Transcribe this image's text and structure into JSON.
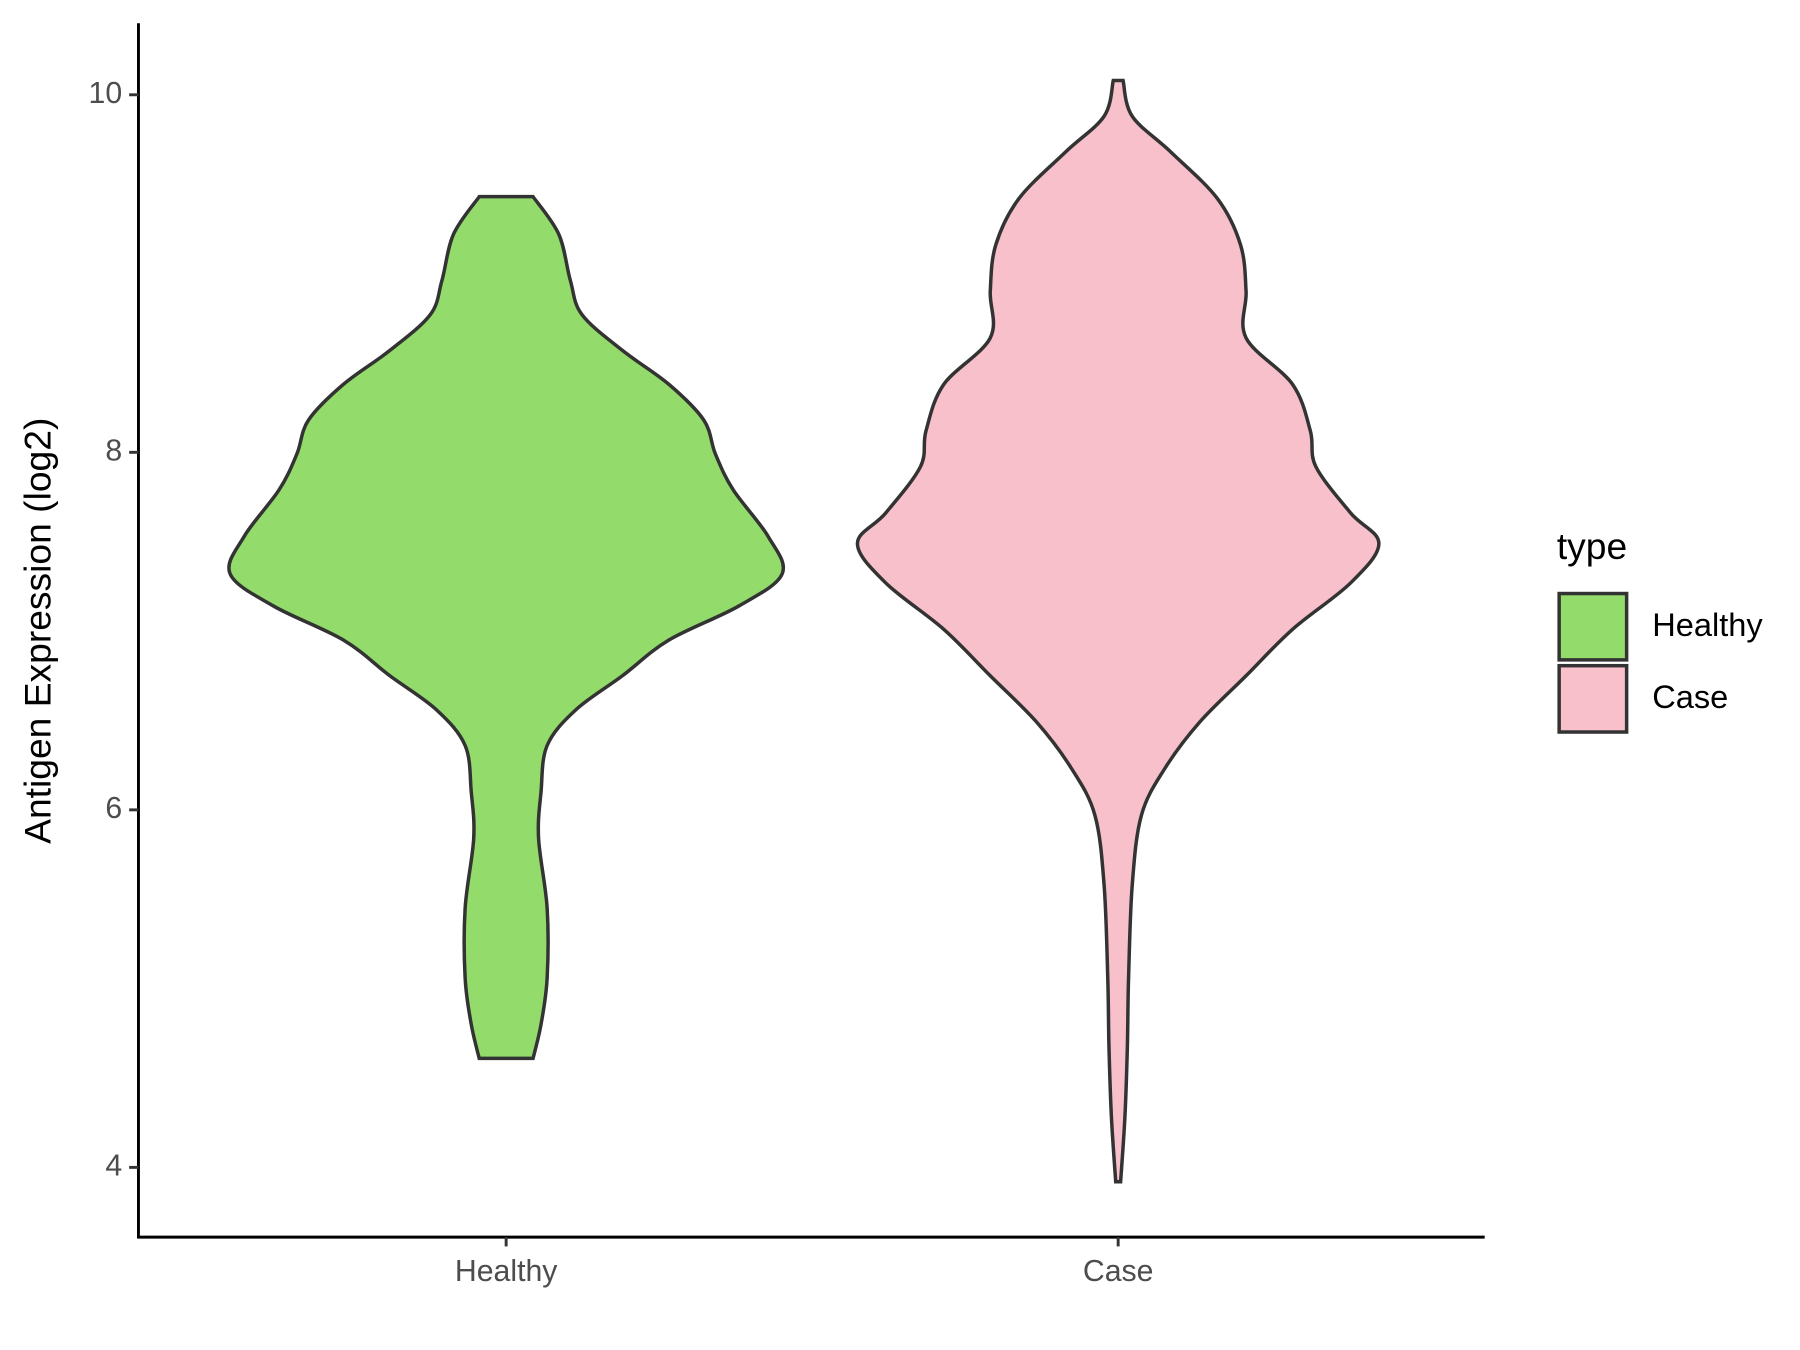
{
  "chart_data": {
    "type": "violin",
    "y_label": "Antigen Expression (log2)",
    "categories": [
      "Healthy",
      "Case"
    ],
    "legend_title": "type",
    "legend": "right",
    "ylim": [
      3.61,
      10.4
    ],
    "yticks": [
      4,
      6,
      8,
      10
    ],
    "series": [
      {
        "name": "Healthy",
        "color": "#93dc6b",
        "y": [
          9.43,
          9.22,
          8.96,
          8.77,
          8.57,
          8.38,
          8.18,
          7.99,
          7.79,
          7.53,
          7.32,
          7.14,
          6.95,
          6.75,
          6.56,
          6.36,
          6.1,
          5.84,
          5.45,
          5.06,
          4.8,
          4.61
        ],
        "half_width": [
          0.044,
          0.086,
          0.105,
          0.124,
          0.19,
          0.266,
          0.323,
          0.342,
          0.371,
          0.428,
          0.451,
          0.38,
          0.266,
          0.19,
          0.114,
          0.067,
          0.057,
          0.053,
          0.067,
          0.067,
          0.057,
          0.044
        ]
      },
      {
        "name": "Case",
        "color": "#f7c0cb",
        "y": [
          10.08,
          9.88,
          9.68,
          9.42,
          9.16,
          8.9,
          8.64,
          8.38,
          8.12,
          7.92,
          7.66,
          7.49,
          7.27,
          7.01,
          6.75,
          6.49,
          6.23,
          5.97,
          5.58,
          5.06,
          4.67,
          4.28,
          3.92
        ],
        "half_width": [
          0.008,
          0.023,
          0.086,
          0.162,
          0.2,
          0.209,
          0.209,
          0.285,
          0.314,
          0.323,
          0.38,
          0.426,
          0.38,
          0.285,
          0.209,
          0.133,
          0.076,
          0.038,
          0.023,
          0.017,
          0.015,
          0.011,
          0.004
        ]
      }
    ]
  }
}
